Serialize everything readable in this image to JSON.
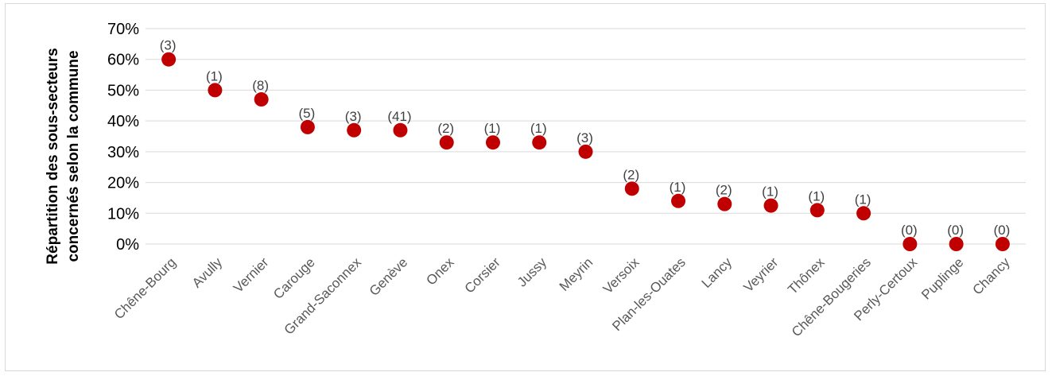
{
  "chart_data": {
    "type": "scatter",
    "title": "",
    "ylabel": "Répartition des sous-secteurs concernés selon la commune",
    "ylabel_lines": [
      "Répartition des sous-secteurs",
      "concernés selon la commune"
    ],
    "xlabel": "",
    "ylim": [
      0,
      0.7
    ],
    "yticks": [
      0,
      0.1,
      0.2,
      0.3,
      0.4,
      0.5,
      0.6,
      0.7
    ],
    "ytick_labels": [
      "0%",
      "10%",
      "20%",
      "30%",
      "40%",
      "50%",
      "60%",
      "70%"
    ],
    "grid": true,
    "legend": "none",
    "marker_color": "#C00000",
    "categories": [
      "Chêne-Bourg",
      "Avully",
      "Vernier",
      "Carouge",
      "Grand-Saconnex",
      "Genève",
      "Onex",
      "Corsier",
      "Jussy",
      "Meyrin",
      "Versoix",
      "Plan-les-Ouates",
      "Lancy",
      "Veyrier",
      "Thônex",
      "Chêne-Bougeries",
      "Perly-Certoux",
      "Puplinge",
      "Chancy"
    ],
    "values": [
      0.6,
      0.5,
      0.47,
      0.38,
      0.37,
      0.37,
      0.33,
      0.33,
      0.33,
      0.3,
      0.18,
      0.14,
      0.13,
      0.125,
      0.11,
      0.1,
      0.0,
      0.0,
      0.0
    ],
    "data_labels": [
      "(3)",
      "(1)",
      "(8)",
      "(5)",
      "(3)",
      "(41)",
      "(2)",
      "(1)",
      "(1)",
      "(3)",
      "(2)",
      "(1)",
      "(2)",
      "(1)",
      "(1)",
      "(1)",
      "(0)",
      "(0)",
      "(0)"
    ]
  }
}
